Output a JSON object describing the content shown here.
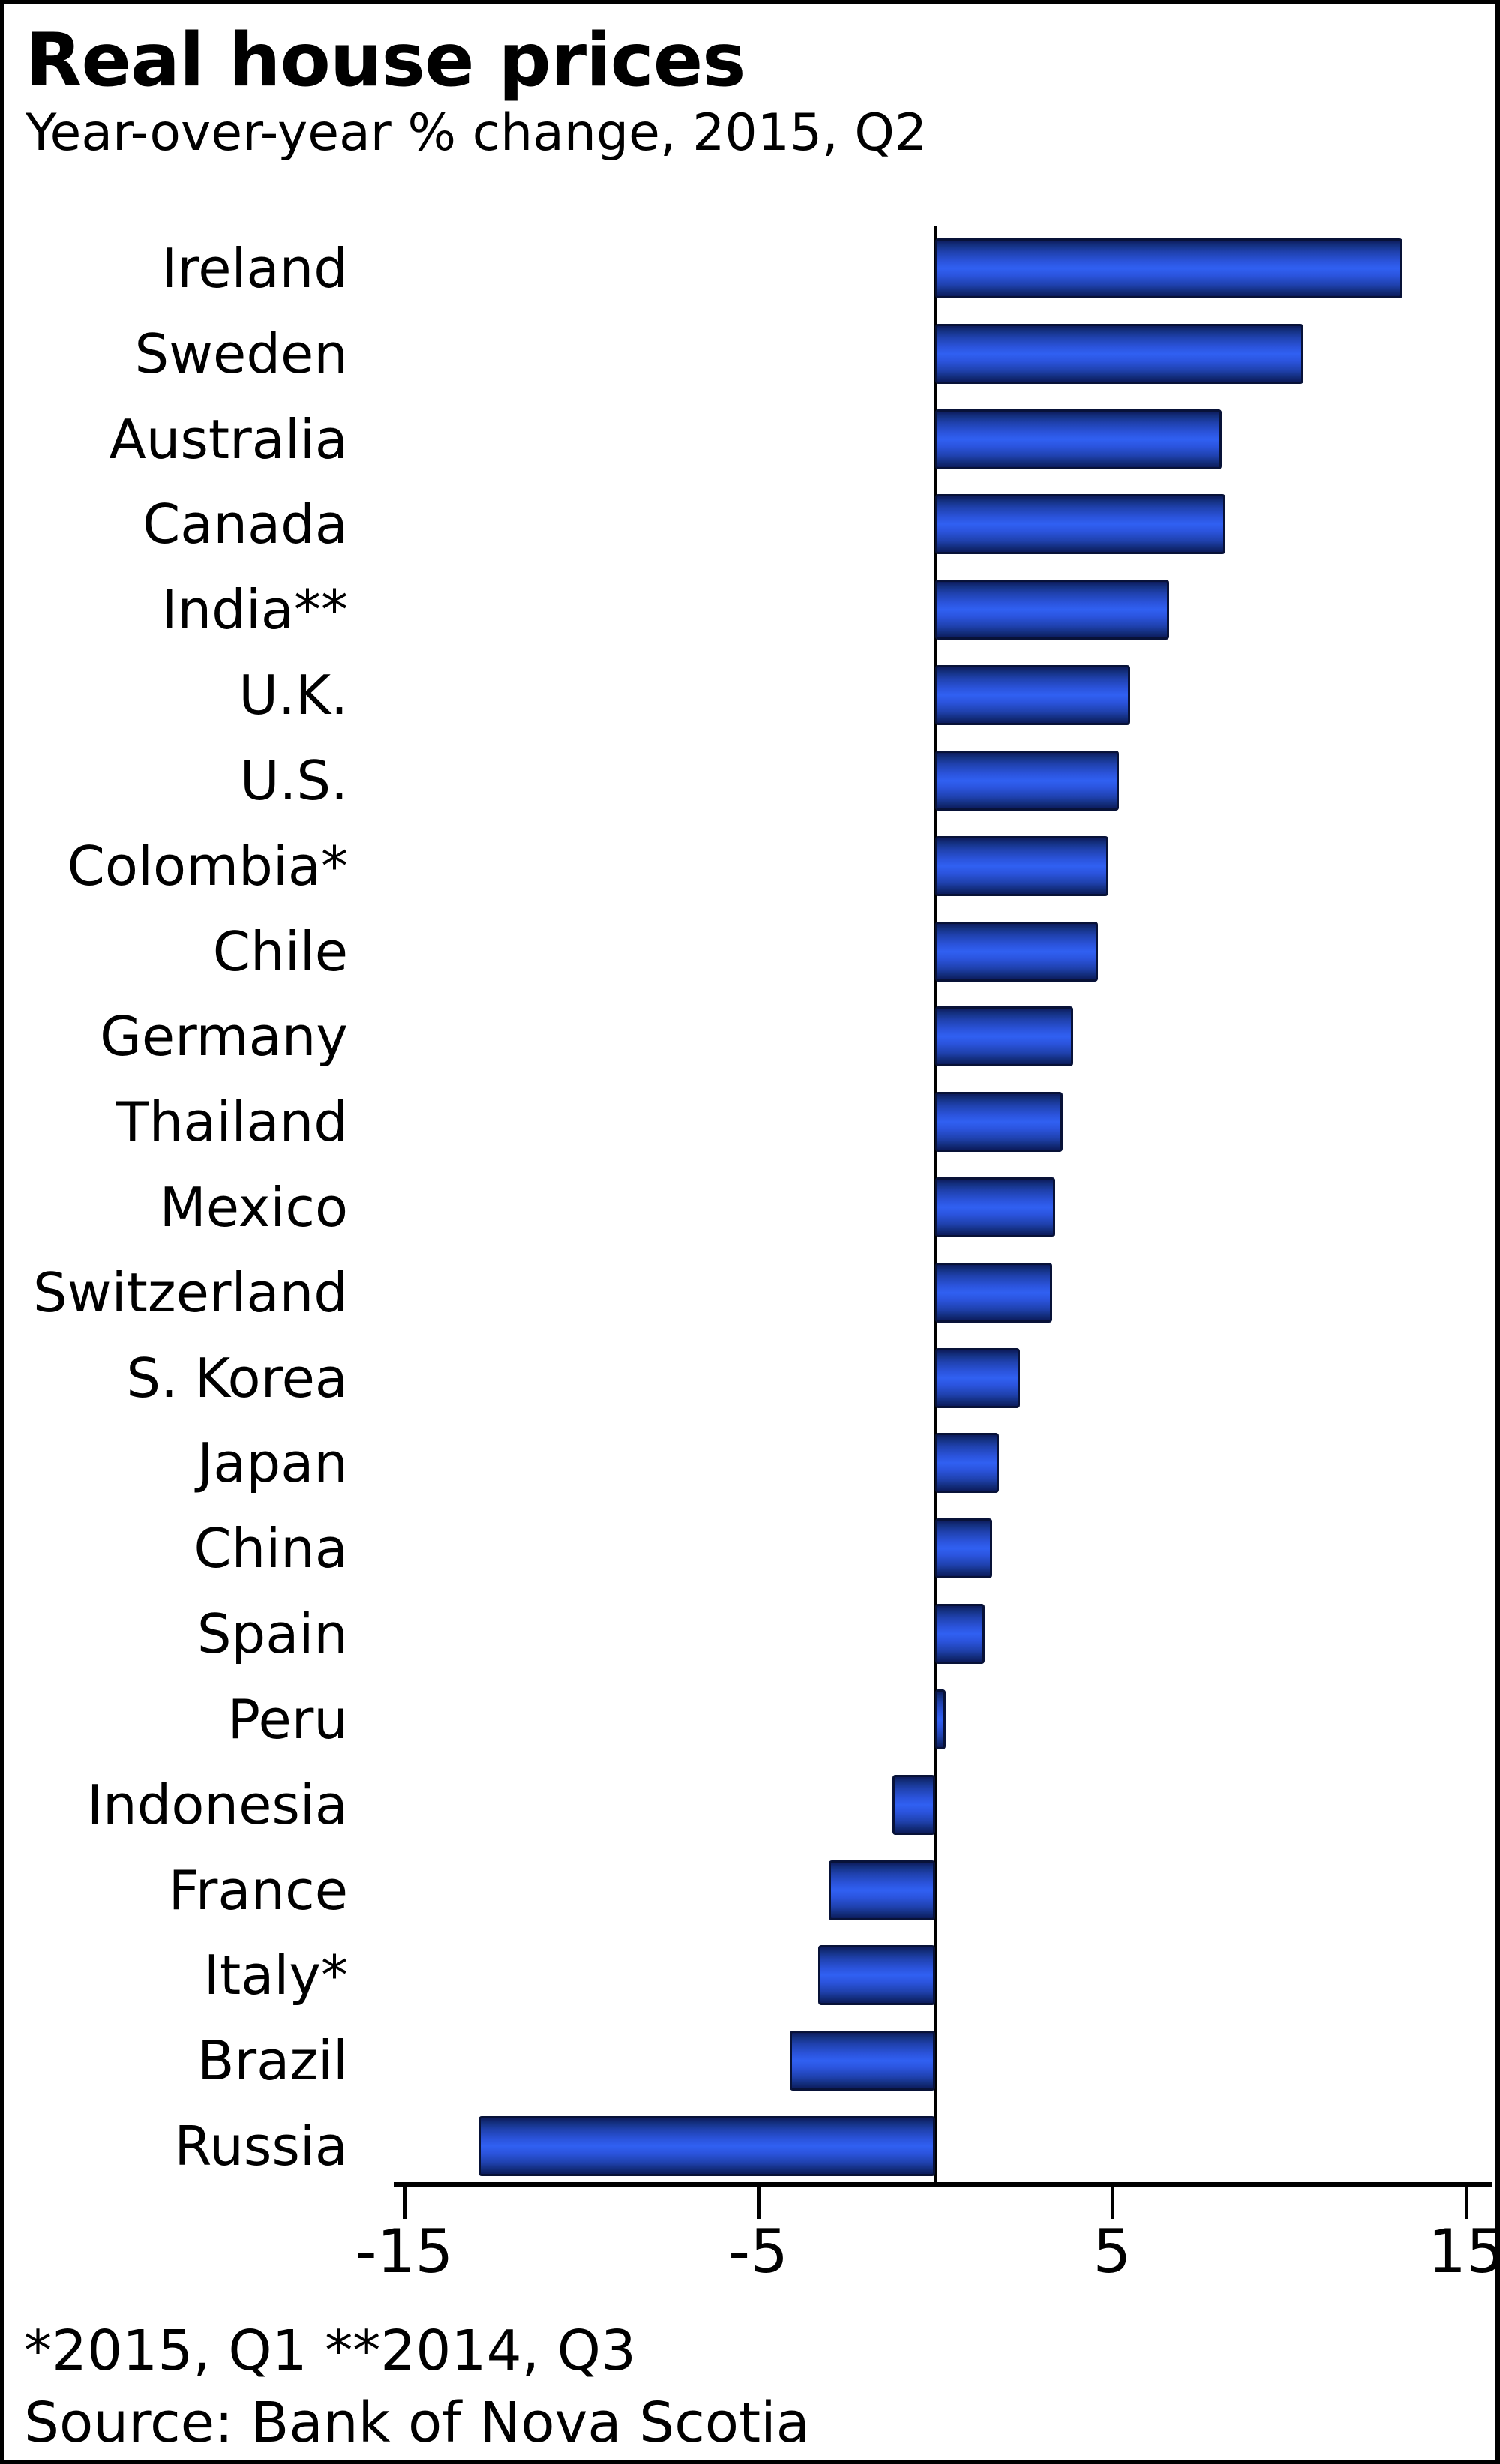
{
  "header": {
    "title": "Real house prices",
    "subtitle": "Year-over-year % change, 2015, Q2"
  },
  "chart_data": {
    "type": "bar",
    "orientation": "horizontal",
    "title": "Real house prices",
    "subtitle": "Year-over-year % change, 2015, Q2",
    "xlabel": "",
    "ylabel": "",
    "categories": [
      "Ireland",
      "Sweden",
      "Australia",
      "Canada",
      "India**",
      "U.K.",
      "U.S.",
      "Colombia*",
      "Chile",
      "Germany",
      "Thailand",
      "Mexico",
      "Switzerland",
      "S. Korea",
      "Japan",
      "China",
      "Spain",
      "Peru",
      "Indonesia",
      "France",
      "Italy*",
      "Brazil",
      "Russia"
    ],
    "values": [
      13.2,
      10.4,
      8.1,
      8.2,
      6.6,
      5.5,
      5.2,
      4.9,
      4.6,
      3.9,
      3.6,
      3.4,
      3.3,
      2.4,
      1.8,
      1.6,
      1.4,
      0.3,
      -1.2,
      -3.0,
      -3.3,
      -4.1,
      -12.9
    ],
    "xlim": [
      -15,
      15
    ],
    "xticks": [
      -15,
      -5,
      5,
      15
    ],
    "xtick_labels": [
      "-15",
      "-5",
      "5",
      "15"
    ],
    "grid": false,
    "legend": false,
    "bar_color_bright": "#3060f2",
    "bar_color_dark": "#0d1c5e",
    "bar_border_color": "#081238",
    "axis_color": "#000000"
  },
  "footnotes": {
    "note": "*2015, Q1 **2014, Q3",
    "source": "Source: Bank of Nova Scotia"
  }
}
